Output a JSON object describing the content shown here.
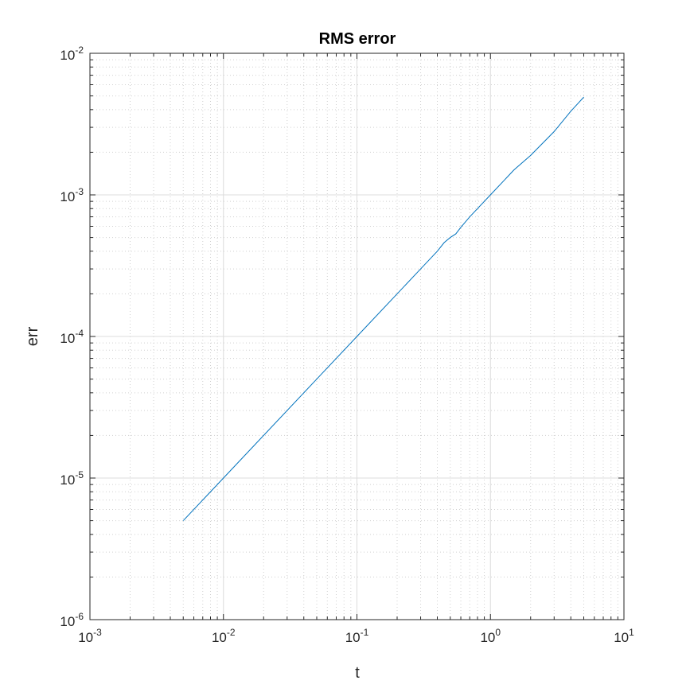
{
  "chart_data": {
    "type": "line",
    "title": "RMS error",
    "xlabel": "t",
    "ylabel": "err",
    "xscale": "log",
    "yscale": "log",
    "xlim": [
      0.001,
      10
    ],
    "ylim": [
      1e-06,
      0.01
    ],
    "grid": true,
    "minor_grid": true,
    "x_ticks": [
      {
        "base": "10",
        "exp": "-3",
        "value": 0.001
      },
      {
        "base": "10",
        "exp": "-2",
        "value": 0.01
      },
      {
        "base": "10",
        "exp": "-1",
        "value": 0.1
      },
      {
        "base": "10",
        "exp": "0",
        "value": 1
      },
      {
        "base": "10",
        "exp": "1",
        "value": 10
      }
    ],
    "y_ticks": [
      {
        "base": "10",
        "exp": "-6",
        "value": 1e-06
      },
      {
        "base": "10",
        "exp": "-5",
        "value": 1e-05
      },
      {
        "base": "10",
        "exp": "-4",
        "value": 0.0001
      },
      {
        "base": "10",
        "exp": "-3",
        "value": 0.001
      },
      {
        "base": "10",
        "exp": "-2",
        "value": 0.01
      }
    ],
    "series": [
      {
        "color": "#0072BD",
        "x": [
          0.005,
          0.01,
          0.05,
          0.1,
          0.2,
          0.3,
          0.4,
          0.45,
          0.5,
          0.55,
          0.6,
          0.7,
          1.0,
          1.5,
          2.0,
          3.0,
          4.0,
          5.0
        ],
        "y": [
          5e-06,
          1e-05,
          5e-05,
          0.0001,
          0.0002,
          0.0003,
          0.0004,
          0.00046,
          0.0005,
          0.00053,
          0.00059,
          0.0007,
          0.001,
          0.0015,
          0.0019,
          0.0028,
          0.0039,
          0.0049
        ]
      }
    ]
  }
}
